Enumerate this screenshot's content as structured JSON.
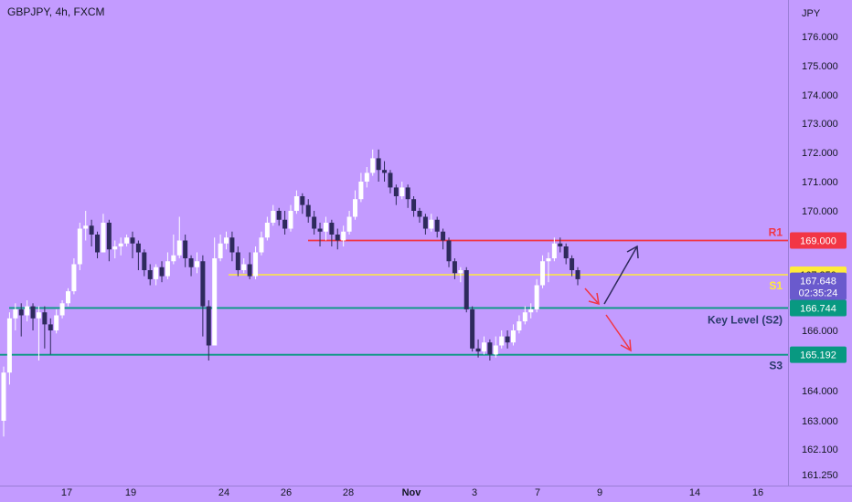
{
  "header": {
    "symbol_title": "GBPJPY, 4h, FXCM"
  },
  "axis": {
    "currency_label": "JPY",
    "y_ticks": [
      "176.000",
      "175.000",
      "174.000",
      "173.000",
      "172.000",
      "171.000",
      "170.000",
      "168.000",
      "166.000",
      "164.000",
      "163.000",
      "162.100",
      "161.250"
    ],
    "x_ticks": [
      "17",
      "19",
      "24",
      "26",
      "28",
      "Nov",
      "3",
      "7",
      "9",
      "14",
      "16"
    ]
  },
  "levels": [
    {
      "name": "R1",
      "price": 169.0,
      "label": "169.000",
      "tag": "R1",
      "color": "#f23645"
    },
    {
      "name": "S1",
      "price": 167.85,
      "label": "167.850",
      "tag": "S1",
      "color": "#ffeb3b"
    },
    {
      "name": "Key Level (S2)",
      "price": 166.744,
      "label": "166.744",
      "tag": "Key Level (S2)",
      "color": "#089981"
    },
    {
      "name": "S3",
      "price": 165.192,
      "label": "165.192",
      "tag": "S3",
      "color": "#089981"
    }
  ],
  "current_price": {
    "label": "167.648",
    "countdown": "02:35:24",
    "price": 167.648,
    "color": "#6a5acd"
  },
  "colors": {
    "background": "#c39bff",
    "bull": "#ffffff",
    "bear": "#2e2a5c",
    "text": "#131722",
    "tag_text": "#2a3a6a"
  },
  "chart_data": {
    "type": "candlestick",
    "title": "GBPJPY, 4h, FXCM",
    "ylim": [
      161.25,
      176.5
    ],
    "x_categories": [
      "17",
      "19",
      "24",
      "26",
      "28",
      "Nov",
      "3",
      "7",
      "9",
      "14",
      "16"
    ],
    "candles": [
      [
        163.0,
        164.6,
        162.5,
        164.8
      ],
      [
        164.6,
        166.4,
        164.2,
        166.6
      ],
      [
        166.4,
        166.7,
        166.0,
        166.9
      ],
      [
        166.7,
        166.5,
        165.8,
        166.9
      ],
      [
        166.5,
        166.8,
        166.3,
        167.0
      ],
      [
        166.8,
        166.4,
        166.0,
        166.9
      ],
      [
        166.4,
        166.6,
        165.0,
        166.8
      ],
      [
        166.6,
        166.2,
        165.4,
        166.8
      ],
      [
        166.2,
        166.0,
        165.2,
        166.4
      ],
      [
        166.0,
        166.5,
        165.9,
        166.7
      ],
      [
        166.5,
        166.9,
        166.4,
        167.0
      ],
      [
        166.9,
        167.3,
        166.8,
        167.4
      ],
      [
        167.3,
        168.2,
        167.2,
        168.4
      ],
      [
        168.2,
        169.4,
        168.0,
        169.6
      ],
      [
        169.4,
        169.5,
        169.0,
        170.0
      ],
      [
        169.5,
        169.2,
        168.8,
        169.7
      ],
      [
        169.2,
        168.6,
        168.4,
        169.3
      ],
      [
        168.6,
        169.6,
        168.6,
        169.9
      ],
      [
        169.6,
        168.7,
        168.3,
        169.7
      ],
      [
        168.7,
        168.8,
        168.4,
        169.0
      ],
      [
        168.8,
        168.9,
        168.5,
        169.1
      ],
      [
        168.9,
        169.1,
        168.8,
        169.2
      ],
      [
        169.1,
        168.9,
        168.4,
        169.3
      ],
      [
        168.9,
        168.6,
        168.0,
        169.0
      ],
      [
        168.6,
        168.0,
        167.8,
        168.7
      ],
      [
        168.0,
        167.7,
        167.5,
        168.2
      ],
      [
        167.7,
        168.1,
        167.5,
        168.2
      ],
      [
        168.1,
        167.8,
        167.6,
        168.3
      ],
      [
        167.8,
        168.3,
        167.7,
        168.6
      ],
      [
        168.3,
        168.5,
        168.2,
        169.2
      ],
      [
        168.5,
        169.0,
        168.4,
        169.8
      ],
      [
        169.0,
        168.4,
        168.1,
        169.2
      ],
      [
        168.4,
        168.1,
        167.8,
        168.5
      ],
      [
        168.1,
        168.3,
        167.9,
        168.6
      ],
      [
        168.3,
        166.8,
        165.8,
        168.5
      ],
      [
        166.8,
        165.5,
        165.0,
        167.0
      ],
      [
        165.5,
        168.4,
        165.5,
        169.1
      ],
      [
        168.4,
        168.9,
        168.3,
        169.2
      ],
      [
        168.9,
        169.1,
        168.7,
        169.3
      ],
      [
        169.1,
        168.6,
        168.3,
        169.3
      ],
      [
        168.6,
        168.0,
        167.8,
        168.8
      ],
      [
        168.0,
        168.2,
        167.9,
        168.4
      ],
      [
        168.2,
        167.8,
        167.7,
        168.6
      ],
      [
        167.8,
        168.6,
        167.7,
        168.8
      ],
      [
        168.6,
        169.1,
        168.5,
        169.3
      ],
      [
        169.1,
        169.6,
        169.0,
        169.8
      ],
      [
        169.6,
        170.0,
        169.5,
        170.2
      ],
      [
        170.0,
        169.7,
        169.5,
        170.1
      ],
      [
        169.7,
        169.4,
        169.2,
        170.0
      ],
      [
        169.4,
        170.0,
        169.3,
        170.2
      ],
      [
        170.0,
        170.5,
        169.9,
        170.7
      ],
      [
        170.5,
        170.2,
        169.9,
        170.6
      ],
      [
        170.2,
        169.8,
        169.6,
        170.4
      ],
      [
        169.8,
        169.4,
        169.2,
        170.0
      ],
      [
        169.4,
        169.3,
        168.8,
        169.6
      ],
      [
        169.3,
        169.6,
        169.0,
        169.8
      ],
      [
        169.6,
        169.2,
        168.8,
        169.7
      ],
      [
        169.2,
        169.0,
        168.7,
        169.4
      ],
      [
        169.0,
        169.3,
        168.8,
        169.5
      ],
      [
        169.3,
        169.8,
        169.2,
        170.0
      ],
      [
        169.8,
        170.4,
        169.7,
        170.7
      ],
      [
        170.4,
        171.0,
        170.3,
        171.3
      ],
      [
        171.0,
        171.3,
        170.8,
        171.5
      ],
      [
        171.3,
        171.8,
        171.2,
        172.1
      ],
      [
        171.8,
        171.4,
        171.0,
        172.1
      ],
      [
        171.4,
        171.3,
        171.0,
        171.7
      ],
      [
        171.3,
        170.8,
        170.6,
        171.4
      ],
      [
        170.8,
        170.5,
        170.2,
        170.9
      ],
      [
        170.5,
        170.8,
        170.4,
        171.0
      ],
      [
        170.8,
        170.4,
        170.1,
        170.9
      ],
      [
        170.4,
        170.0,
        169.8,
        170.5
      ],
      [
        170.0,
        169.8,
        169.6,
        170.1
      ],
      [
        169.8,
        169.4,
        169.2,
        169.9
      ],
      [
        169.4,
        169.7,
        169.3,
        169.9
      ],
      [
        169.7,
        169.3,
        169.1,
        169.8
      ],
      [
        169.3,
        169.0,
        168.7,
        169.4
      ],
      [
        169.0,
        168.3,
        168.1,
        169.1
      ],
      [
        168.3,
        167.9,
        167.7,
        168.4
      ],
      [
        167.9,
        168.0,
        167.6,
        168.1
      ],
      [
        168.0,
        166.7,
        166.6,
        168.1
      ],
      [
        166.7,
        165.4,
        165.3,
        166.8
      ],
      [
        165.4,
        165.3,
        165.1,
        165.7
      ],
      [
        165.3,
        165.6,
        165.2,
        165.8
      ],
      [
        165.6,
        165.2,
        165.0,
        165.7
      ],
      [
        165.2,
        165.5,
        165.1,
        165.8
      ],
      [
        165.5,
        165.8,
        165.4,
        166.0
      ],
      [
        165.8,
        165.6,
        165.4,
        166.0
      ],
      [
        165.6,
        166.0,
        165.5,
        166.2
      ],
      [
        166.0,
        166.3,
        165.9,
        166.5
      ],
      [
        166.3,
        166.6,
        166.2,
        166.8
      ],
      [
        166.6,
        166.7,
        166.4,
        166.9
      ],
      [
        166.7,
        167.5,
        166.6,
        167.7
      ],
      [
        167.5,
        168.3,
        167.4,
        168.5
      ],
      [
        168.3,
        168.4,
        167.6,
        168.6
      ],
      [
        168.4,
        168.9,
        168.3,
        169.1
      ],
      [
        168.9,
        168.8,
        168.6,
        169.1
      ],
      [
        168.8,
        168.4,
        168.2,
        168.9
      ],
      [
        168.4,
        168.0,
        167.8,
        168.5
      ],
      [
        168.0,
        167.7,
        167.5,
        168.1
      ]
    ]
  }
}
